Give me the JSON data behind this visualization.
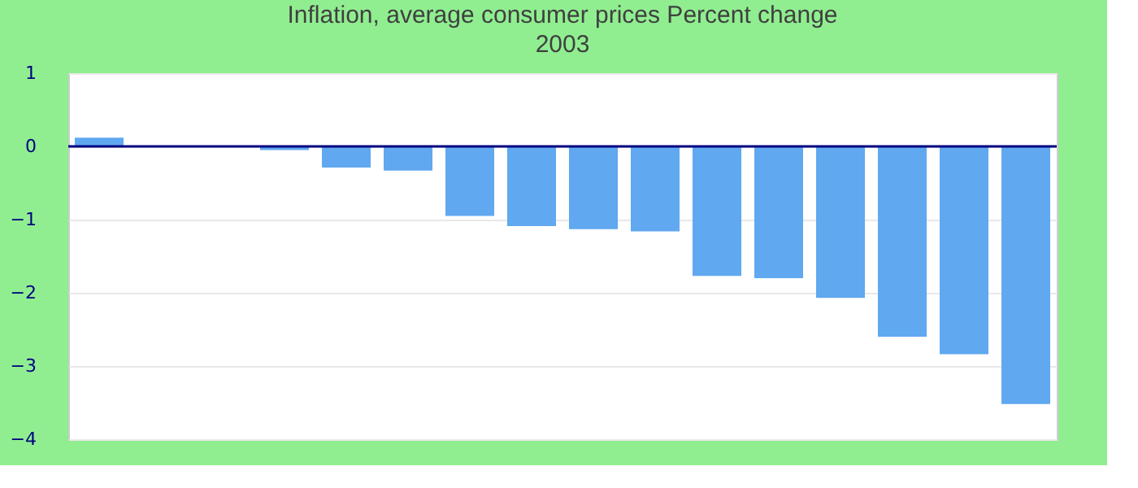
{
  "chart_data": {
    "type": "bar",
    "title": "Inflation, average consumer prices  Percent change",
    "subtitle": "2003",
    "categories": [
      null,
      null,
      null,
      null,
      null,
      null,
      null,
      null,
      null,
      null,
      null,
      null,
      null,
      null,
      null,
      null
    ],
    "values": [
      0.12,
      0,
      0,
      -0.05,
      -0.29,
      -0.33,
      -0.95,
      -1.09,
      -1.13,
      -1.16,
      -1.77,
      -1.8,
      -2.07,
      -2.6,
      -2.84,
      -3.52
    ],
    "color": "#60a8f0",
    "ylim": [
      -4,
      1
    ],
    "yticks": [
      -4,
      -3,
      -2,
      -1,
      0,
      1
    ],
    "grid": "y",
    "ref_lines": [
      {
        "axis": "y",
        "value": 0,
        "color": "#000080"
      }
    ]
  }
}
